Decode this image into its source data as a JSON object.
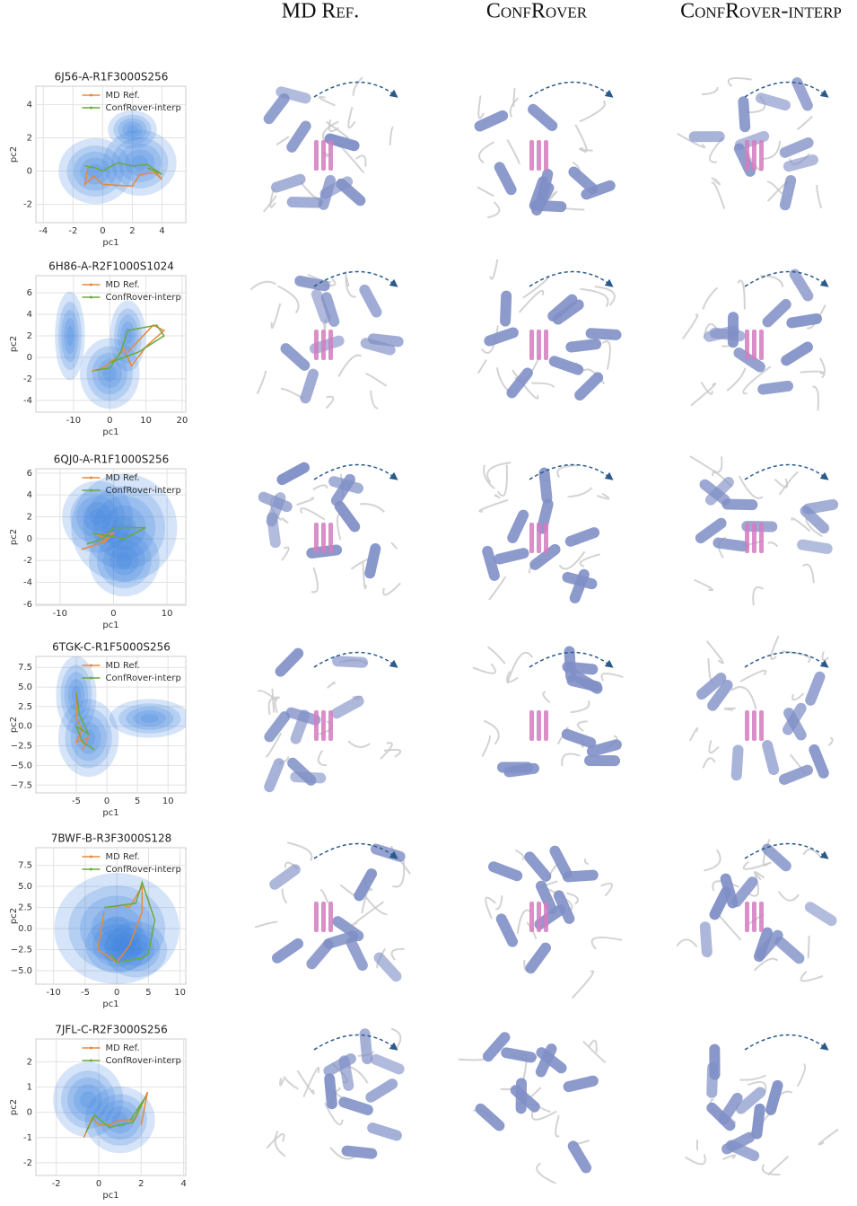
{
  "columns": [
    "MD Ref.",
    "ConfRover",
    "ConfRover-interp"
  ],
  "chart_data": [
    {
      "type": "line",
      "title": "6J56-A-R1F3000S256",
      "xlabel": "pc1",
      "ylabel": "pc2",
      "xlim": [
        -4.5,
        5.6
      ],
      "ylim": [
        -3.1,
        5.1
      ],
      "xticks": [
        -4,
        -2,
        0,
        2,
        4
      ],
      "yticks": [
        -2,
        0,
        2,
        4
      ],
      "grid": true,
      "legend": "upper center",
      "density": {
        "color": "#3f86e0",
        "blobs": [
          {
            "x": -0.5,
            "y": 0,
            "sx": 1.5,
            "sy": 1.2
          },
          {
            "x": 2.5,
            "y": 0.5,
            "sx": 1.5,
            "sy": 1.2
          },
          {
            "x": 2,
            "y": 2.5,
            "sx": 1,
            "sy": 0.7
          }
        ]
      },
      "series": [
        {
          "name": "MD Ref.",
          "color": "#e8883a",
          "x": [
            -1,
            -1.2,
            -0.6,
            0,
            2,
            2.5,
            3.5,
            4,
            3.5
          ],
          "values": [
            0.2,
            -0.8,
            -0.3,
            -0.8,
            -0.9,
            -0.2,
            -0.1,
            -0.5,
            0
          ]
        },
        {
          "name": "ConfRover-interp",
          "color": "#6aaa3c",
          "x": [
            -1.2,
            -0.5,
            0,
            1,
            2,
            3,
            4,
            3
          ],
          "values": [
            0.3,
            0.2,
            0,
            0.5,
            0.3,
            0.4,
            -0.2,
            0.2
          ]
        }
      ]
    },
    {
      "type": "line",
      "title": "6H86-A-R2F1000S1024",
      "xlabel": "pc1",
      "ylabel": "pc2",
      "xlim": [
        -20.4,
        21
      ],
      "ylim": [
        -5.1,
        7.6
      ],
      "xticks": [
        -10,
        0,
        10,
        20
      ],
      "yticks": [
        -4,
        -2,
        0,
        2,
        4,
        6
      ],
      "grid": true,
      "legend": "upper center",
      "density": {
        "color": "#3f86e0",
        "blobs": [
          {
            "x": -11,
            "y": 2,
            "sx": 2.5,
            "sy": 2.5
          },
          {
            "x": 0,
            "y": -1.5,
            "sx": 5,
            "sy": 2
          },
          {
            "x": 5,
            "y": 2,
            "sx": 3,
            "sy": 2
          }
        ]
      },
      "series": [
        {
          "name": "MD Ref.",
          "color": "#e8883a",
          "x": [
            -5,
            -2,
            0,
            2,
            4,
            6,
            10,
            15,
            12,
            5
          ],
          "values": [
            -1.3,
            -1,
            -0.5,
            0,
            0.8,
            -0.8,
            1,
            2.5,
            3,
            0.5
          ]
        },
        {
          "name": "ConfRover-interp",
          "color": "#6aaa3c",
          "x": [
            -4,
            0,
            3,
            5,
            13,
            15,
            8,
            0
          ],
          "values": [
            -1.2,
            -1,
            0.5,
            2.5,
            3,
            2,
            0.5,
            -0.5
          ]
        }
      ]
    },
    {
      "type": "line",
      "title": "6QJ0-A-R1F1000S256",
      "xlabel": "pc1",
      "ylabel": "pc2",
      "xlim": [
        -14.5,
        13.5
      ],
      "ylim": [
        -6.1,
        6.4
      ],
      "xticks": [
        -10,
        0,
        10
      ],
      "yticks": [
        -6,
        -4,
        -2,
        0,
        2,
        4,
        6
      ],
      "grid": true,
      "legend": "upper center",
      "density": {
        "color": "#3f86e0",
        "blobs": [
          {
            "x": 2,
            "y": 1,
            "sx": 6,
            "sy": 3
          },
          {
            "x": 2,
            "y": -2,
            "sx": 4,
            "sy": 2
          },
          {
            "x": -3,
            "y": 2,
            "sx": 4,
            "sy": 2
          }
        ]
      },
      "series": [
        {
          "name": "MD Ref.",
          "color": "#e8883a",
          "x": [
            -6,
            -3,
            -1,
            -3,
            0,
            -2
          ],
          "values": [
            -1,
            -0.5,
            0,
            0.3,
            0.5,
            -0.5
          ]
        },
        {
          "name": "ConfRover-interp",
          "color": "#6aaa3c",
          "x": [
            -5,
            -2,
            0,
            6,
            2,
            -4
          ],
          "values": [
            -0.5,
            0,
            1,
            1,
            0,
            0.5
          ]
        }
      ]
    },
    {
      "type": "line",
      "title": "6TGK-C-R1F5000S256",
      "xlabel": "pc1",
      "ylabel": "pc2",
      "xlim": [
        -11.6,
        12.9
      ],
      "ylim": [
        -8.5,
        8.9
      ],
      "xticks": [
        -5,
        0,
        5,
        10
      ],
      "yticks": [
        {
          "value": -7.5,
          "label": "−7.5"
        },
        {
          "value": -5,
          "label": "−5.0"
        },
        {
          "value": -2.5,
          "label": "−2.5"
        },
        {
          "value": 0,
          "label": "0.0"
        },
        {
          "value": 2.5,
          "label": "2.5"
        },
        {
          "value": 5,
          "label": "5.0"
        },
        {
          "value": 7.5,
          "label": "7.5"
        }
      ],
      "grid": true,
      "legend": "upper center",
      "density": {
        "color": "#3f86e0",
        "blobs": [
          {
            "x": -3,
            "y": -1.5,
            "sx": 3,
            "sy": 3
          },
          {
            "x": -5,
            "y": 4,
            "sx": 2,
            "sy": 3
          },
          {
            "x": 7,
            "y": 1,
            "sx": 4,
            "sy": 1.5
          }
        ]
      },
      "series": [
        {
          "name": "MD Ref.",
          "color": "#e8883a",
          "x": [
            -5,
            -5,
            -4,
            -5,
            -3,
            -4
          ],
          "values": [
            4.5,
            1,
            -0.5,
            -2,
            -1.5,
            -3
          ]
        },
        {
          "name": "ConfRover-interp",
          "color": "#6aaa3c",
          "x": [
            -5,
            -4.5,
            -3,
            -5,
            -4,
            -2
          ],
          "values": [
            4.3,
            1.5,
            -1,
            0,
            -2,
            -3
          ]
        }
      ]
    },
    {
      "type": "line",
      "title": "7BWF-B-R3F3000S128",
      "xlabel": "pc1",
      "ylabel": "pc2",
      "xlim": [
        -12.8,
        10.9
      ],
      "ylim": [
        -6.6,
        9.6
      ],
      "xticks": [
        -10,
        -5,
        0,
        5,
        10
      ],
      "yticks": [
        {
          "value": -5,
          "label": "−5.0"
        },
        {
          "value": -2.5,
          "label": "−2.5"
        },
        {
          "value": 0,
          "label": "0.0"
        },
        {
          "value": 2.5,
          "label": "2.5"
        },
        {
          "value": 5,
          "label": "5.0"
        },
        {
          "value": 7.5,
          "label": "7.5"
        }
      ],
      "grid": true,
      "legend": "upper center",
      "density": {
        "color": "#3f86e0",
        "blobs": [
          {
            "x": 0,
            "y": 0,
            "sx": 6,
            "sy": 4
          },
          {
            "x": 0,
            "y": -2,
            "sx": 3,
            "sy": 2
          },
          {
            "x": 3,
            "y": -2.5,
            "sx": 3,
            "sy": 2
          }
        ]
      },
      "series": [
        {
          "name": "MD Ref.",
          "color": "#e8883a",
          "x": [
            -1,
            1,
            2,
            4,
            4,
            2,
            0,
            -3,
            -2
          ],
          "values": [
            2.5,
            2.8,
            2.5,
            5,
            2,
            -2,
            -4,
            -2.5,
            2
          ]
        },
        {
          "name": "ConfRover-interp",
          "color": "#6aaa3c",
          "x": [
            -2,
            3,
            4,
            6,
            5,
            4,
            0,
            -1
          ],
          "values": [
            2.5,
            3,
            5.5,
            1,
            -3,
            -3.5,
            -4,
            -3
          ]
        }
      ]
    },
    {
      "type": "line",
      "title": "7JFL-C-R2F3000S256",
      "xlabel": "pc1",
      "ylabel": "pc2",
      "xlim": [
        -2.96,
        4.1
      ],
      "ylim": [
        -2.5,
        2.9
      ],
      "xticks": [
        -2,
        0,
        2,
        4
      ],
      "yticks": [
        -2,
        -1,
        0,
        1,
        2
      ],
      "grid": true,
      "legend": "upper center",
      "density": {
        "color": "#3f86e0",
        "blobs": [
          {
            "x": -0.5,
            "y": 0.5,
            "sx": 1,
            "sy": 0.9
          },
          {
            "x": 1,
            "y": -0.3,
            "sx": 1,
            "sy": 0.8
          }
        ]
      },
      "series": [
        {
          "name": "MD Ref.",
          "color": "#e8883a",
          "x": [
            -0.7,
            -0.3,
            0,
            0.5,
            1,
            1.7,
            2.3,
            2
          ],
          "values": [
            -1,
            -0.2,
            -0.5,
            -0.5,
            -0.3,
            -0.3,
            0.8,
            -0.5
          ]
        },
        {
          "name": "ConfRover-interp",
          "color": "#6aaa3c",
          "x": [
            -0.6,
            -0.2,
            0.5,
            1,
            1.6,
            2.2,
            1.5
          ],
          "values": [
            -0.8,
            -0.1,
            -0.6,
            -0.5,
            -0.4,
            0.6,
            -0.3
          ]
        }
      ]
    }
  ]
}
